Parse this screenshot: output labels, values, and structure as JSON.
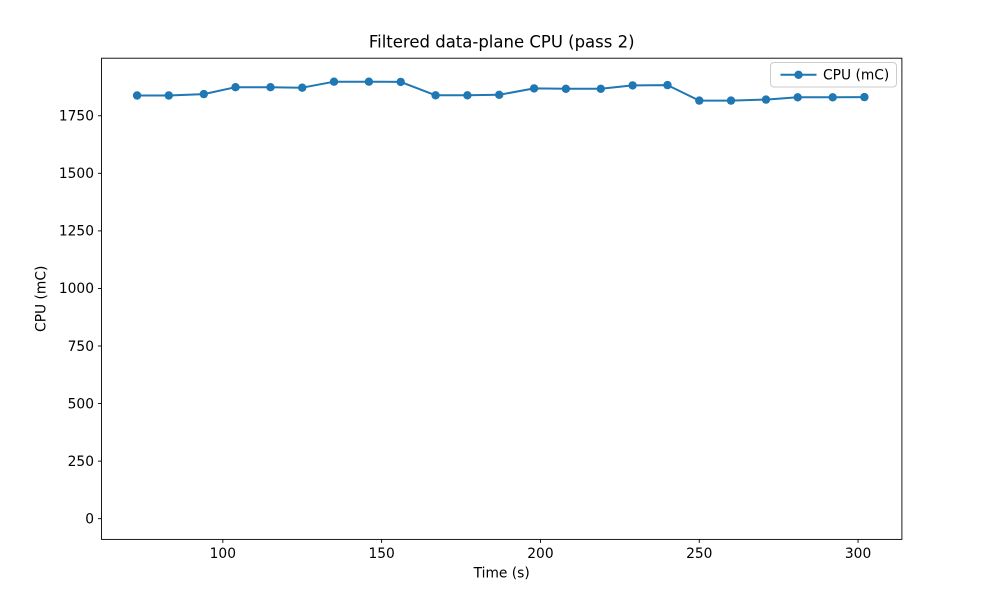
{
  "chart_data": {
    "type": "line",
    "title": "Filtered data-plane CPU (pass 2)",
    "xlabel": "Time (s)",
    "ylabel": "CPU (mC)",
    "x": [
      73,
      83,
      94,
      104,
      115,
      125,
      135,
      146,
      156,
      167,
      177,
      187,
      198,
      208,
      219,
      229,
      240,
      250,
      260,
      271,
      281,
      292,
      302
    ],
    "series": [
      {
        "name": "CPU (mC)",
        "color": "#1f77b4",
        "marker": "circle",
        "values": [
          1838,
          1838,
          1844,
          1874,
          1874,
          1872,
          1898,
          1898,
          1897,
          1839,
          1839,
          1841,
          1869,
          1867,
          1867,
          1882,
          1883,
          1816,
          1816,
          1820,
          1830,
          1830,
          1831
        ]
      }
    ],
    "xlim": [
      61.8,
      313.8
    ],
    "ylim": [
      -90,
      2000
    ],
    "xticks": [
      100,
      150,
      200,
      250,
      300
    ],
    "yticks": [
      0,
      250,
      500,
      750,
      1000,
      1250,
      1500,
      1750
    ],
    "grid": false,
    "legend": {
      "position": "upper right",
      "entries": [
        "CPU (mC)"
      ]
    }
  },
  "colors": {
    "accent": "#1f77b4",
    "axis": "#000000",
    "legend_border": "#cccccc",
    "background": "#ffffff"
  }
}
